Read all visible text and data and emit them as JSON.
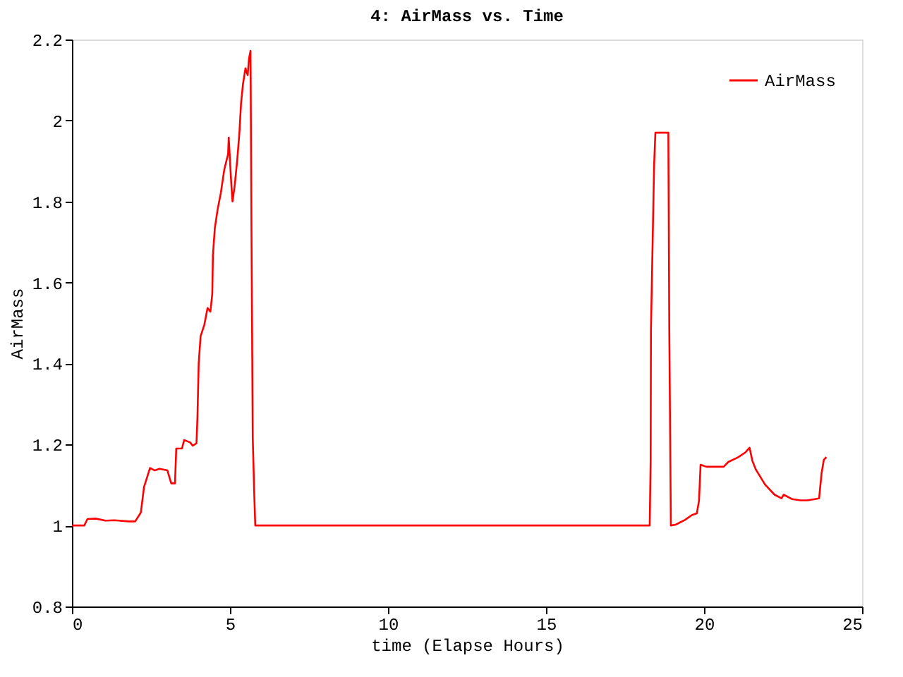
{
  "chart_data": {
    "type": "line",
    "title": "4: AirMass vs. Time",
    "xlabel": "time (Elapse Hours)",
    "ylabel": "AirMass",
    "xlim": [
      0,
      25
    ],
    "xticks": [
      0,
      5,
      10,
      15,
      20,
      25
    ],
    "ylim": [
      0.8,
      2.2
    ],
    "yticks": [
      0.8,
      {
        "value": 1,
        "label": "1"
      },
      1.2,
      1.4,
      1.6,
      1.8,
      {
        "value": 2,
        "label": "2"
      },
      2.2
    ],
    "grid": false,
    "legend": "top right",
    "marker": "none",
    "line_style": "solid",
    "series": [
      {
        "name": "AirMass",
        "color": "#ff0000",
        "x": [
          0,
          0.39,
          0.49,
          0.75,
          1.06,
          1.35,
          1.8,
          2.0,
          2.18,
          2.28,
          2.47,
          2.62,
          2.77,
          3.02,
          3.14,
          3.26,
          3.3,
          3.48,
          3.55,
          3.74,
          3.82,
          3.94,
          3.97,
          4.01,
          4.07,
          4.19,
          4.29,
          4.38,
          4.44,
          4.46,
          4.52,
          4.61,
          4.71,
          4.82,
          4.94,
          4.96,
          5.04,
          5.08,
          5.15,
          5.23,
          5.3,
          5.35,
          5.41,
          5.49,
          5.56,
          5.6,
          5.65,
          5.68,
          5.72,
          5.77,
          5.8,
          18.28,
          18.31,
          18.32,
          18.38,
          18.42,
          18.46,
          18.87,
          18.9,
          18.95,
          19.1,
          19.4,
          19.62,
          19.77,
          19.84,
          19.89,
          20.07,
          20.62,
          20.77,
          21.07,
          21.3,
          21.44,
          21.53,
          21.64,
          21.93,
          22.23,
          22.45,
          22.52,
          22.79,
          23.05,
          23.27,
          23.64,
          23.72,
          23.79,
          23.87
        ],
        "values": [
          1.0,
          1.0,
          1.016,
          1.017,
          1.012,
          1.013,
          1.01,
          1.01,
          1.032,
          1.095,
          1.142,
          1.136,
          1.14,
          1.136,
          1.104,
          1.104,
          1.19,
          1.19,
          1.211,
          1.205,
          1.197,
          1.203,
          1.266,
          1.4,
          1.467,
          1.496,
          1.537,
          1.528,
          1.572,
          1.667,
          1.734,
          1.781,
          1.821,
          1.879,
          1.917,
          1.958,
          1.845,
          1.8,
          1.84,
          1.903,
          1.972,
          2.042,
          2.089,
          2.129,
          2.112,
          2.152,
          2.172,
          1.729,
          1.217,
          1.072,
          1.0,
          1.0,
          1.16,
          1.485,
          1.729,
          1.891,
          1.97,
          1.97,
          1.485,
          1.0,
          1.002,
          1.014,
          1.026,
          1.03,
          1.061,
          1.15,
          1.145,
          1.145,
          1.157,
          1.168,
          1.18,
          1.192,
          1.159,
          1.138,
          1.101,
          1.076,
          1.067,
          1.076,
          1.065,
          1.062,
          1.062,
          1.067,
          1.13,
          1.162,
          1.169
        ]
      }
    ]
  }
}
